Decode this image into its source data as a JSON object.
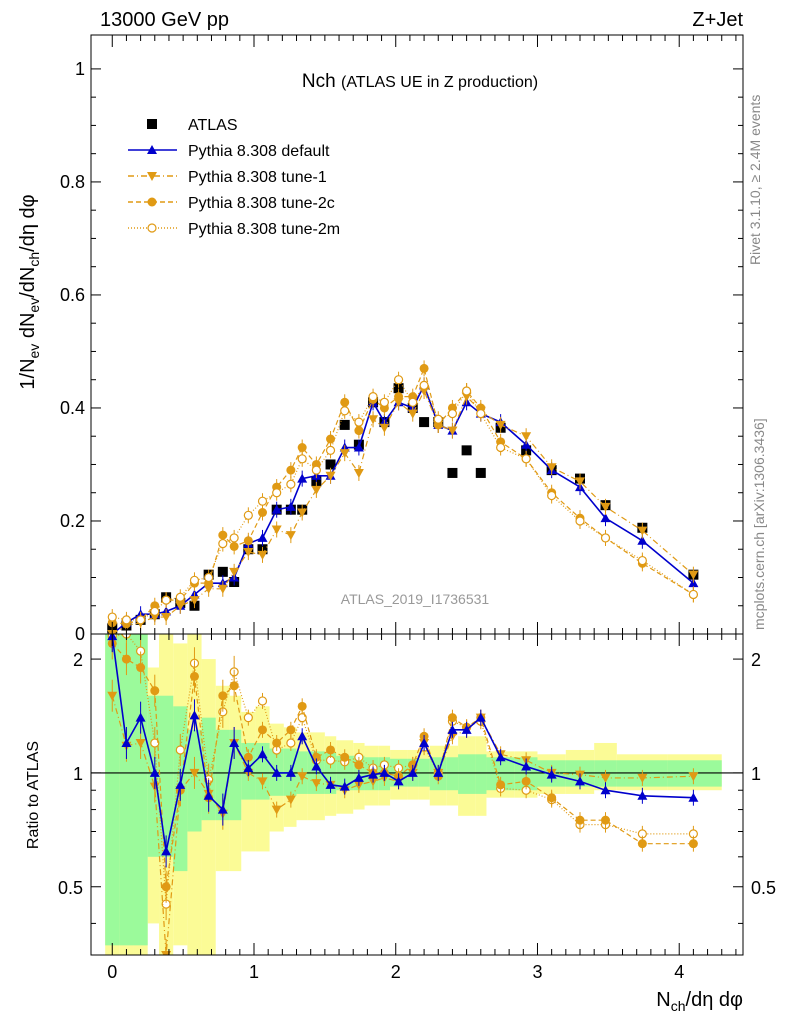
{
  "header": {
    "left": "13000 GeV pp",
    "right": "Z+Jet"
  },
  "side": {
    "rivet": "Rivet 3.1.10, ≥ 2.4M events",
    "mcplots": "mcplots.cern.ch [arXiv:1306.3436]"
  },
  "chart_data": [
    {
      "type": "scatter",
      "title": "Nch",
      "subtitle": "(ATLAS UE in Z production)",
      "watermark": "ATLAS_2019_I1736531",
      "ylabel": "1/N_ev dN_ev/dN_ch/dη dφ",
      "ylim": [
        0,
        1.06
      ],
      "xlim": [
        -0.15,
        4.45
      ],
      "yticks": [
        "0",
        "0.2",
        "0.4",
        "0.6",
        "0.8",
        "1"
      ],
      "legend_placement": "top-left",
      "colors": {
        "atlas": "#000000",
        "default": "#0000cc",
        "tune": "#e09a14",
        "band_inner": "#9bfa9b",
        "band_outer": "#fbfb96"
      },
      "x": [
        0.0,
        0.1,
        0.2,
        0.3,
        0.38,
        0.48,
        0.58,
        0.68,
        0.78,
        0.86,
        0.96,
        1.06,
        1.16,
        1.26,
        1.34,
        1.44,
        1.54,
        1.64,
        1.74,
        1.84,
        1.92,
        2.02,
        2.12,
        2.2,
        2.3,
        2.4,
        2.5,
        2.6,
        2.74,
        2.92,
        3.1,
        3.3,
        3.48,
        3.74,
        4.1
      ],
      "series": [
        {
          "name": "ATLAS",
          "marker": "square",
          "values": [
            0.01,
            0.015,
            0.025,
            0.035,
            0.065,
            0.055,
            0.05,
            0.105,
            0.11,
            0.092,
            0.15,
            0.15,
            0.22,
            0.22,
            0.22,
            0.27,
            0.3,
            0.37,
            0.335,
            0.41,
            0.375,
            0.435,
            0.4,
            0.375,
            0.375,
            0.285,
            0.325,
            0.285,
            0.365,
            0.325,
            0.29,
            0.275,
            0.228,
            0.188,
            0.105
          ]
        },
        {
          "name": "Pythia 8.308 default",
          "marker": "triangle-up",
          "values": [
            0.0,
            0.02,
            0.035,
            0.035,
            0.04,
            0.05,
            0.07,
            0.09,
            0.09,
            0.1,
            0.16,
            0.17,
            0.22,
            0.225,
            0.275,
            0.28,
            0.28,
            0.33,
            0.33,
            0.41,
            0.375,
            0.41,
            0.4,
            0.44,
            0.37,
            0.36,
            0.41,
            0.39,
            0.375,
            0.335,
            0.29,
            0.26,
            0.205,
            0.165,
            0.09
          ]
        },
        {
          "name": "Pythia 8.308 tune-1",
          "marker": "triangle-down",
          "values": [
            0.0,
            0.015,
            0.02,
            0.03,
            0.03,
            0.05,
            0.06,
            0.08,
            0.08,
            0.11,
            0.145,
            0.14,
            0.185,
            0.175,
            0.215,
            0.255,
            0.28,
            0.32,
            0.285,
            0.38,
            0.365,
            0.41,
            0.39,
            0.43,
            0.37,
            0.36,
            0.42,
            0.395,
            0.37,
            0.35,
            0.295,
            0.27,
            0.225,
            0.183,
            0.105
          ]
        },
        {
          "name": "Pythia 8.308 tune-2c",
          "marker": "circle",
          "values": [
            0.02,
            0.018,
            0.025,
            0.05,
            0.06,
            0.06,
            0.09,
            0.09,
            0.175,
            0.155,
            0.165,
            0.215,
            0.26,
            0.29,
            0.33,
            0.3,
            0.345,
            0.41,
            0.36,
            0.415,
            0.4,
            0.42,
            0.42,
            0.47,
            0.37,
            0.4,
            0.43,
            0.4,
            0.34,
            0.31,
            0.25,
            0.205,
            0.17,
            0.125,
            0.07
          ]
        },
        {
          "name": "Pythia 8.308 tune-2m",
          "marker": "circle-open",
          "values": [
            0.03,
            0.025,
            0.025,
            0.04,
            0.06,
            0.065,
            0.095,
            0.1,
            0.16,
            0.17,
            0.21,
            0.235,
            0.25,
            0.265,
            0.31,
            0.29,
            0.325,
            0.395,
            0.375,
            0.42,
            0.41,
            0.45,
            0.41,
            0.44,
            0.38,
            0.39,
            0.43,
            0.39,
            0.33,
            0.31,
            0.245,
            0.2,
            0.17,
            0.13,
            0.07
          ]
        }
      ]
    },
    {
      "type": "line",
      "ylabel": "Ratio to ATLAS",
      "ylim": [
        0.33,
        2.33
      ],
      "yscale": "log",
      "xlim": [
        -0.15,
        4.45
      ],
      "xlabel": "N_ch/dη dφ",
      "xticks": [
        "0",
        "1",
        "2",
        "3",
        "4"
      ],
      "yticks": [
        "0.5",
        "1",
        "2"
      ],
      "reference_line": 1,
      "band_edges": [
        -0.05,
        0.05,
        0.15,
        0.25,
        0.33,
        0.43,
        0.53,
        0.63,
        0.73,
        0.83,
        0.91,
        1.01,
        1.11,
        1.21,
        1.3,
        1.38,
        1.5,
        1.58,
        1.7,
        1.78,
        1.88,
        1.96,
        2.08,
        2.16,
        2.24,
        2.36,
        2.44,
        2.56,
        2.64,
        2.84,
        3.0,
        3.2,
        3.4,
        3.56,
        3.92,
        4.3
      ],
      "band_inner": [
        0.35,
        0.35,
        0.35,
        0.6,
        0.6,
        0.55,
        0.7,
        0.75,
        0.75,
        0.75,
        0.85,
        0.85,
        0.87,
        0.87,
        0.88,
        0.88,
        0.88,
        0.9,
        0.9,
        0.9,
        0.9,
        0.92,
        0.92,
        0.92,
        0.9,
        0.9,
        0.88,
        0.88,
        0.9,
        0.9,
        0.92,
        0.92,
        0.92,
        0.92,
        0.92
      ],
      "band_inner_high": [
        2.33,
        2.33,
        2.33,
        1.6,
        1.6,
        1.5,
        1.3,
        1.4,
        1.3,
        1.3,
        1.2,
        1.2,
        1.16,
        1.16,
        1.14,
        1.14,
        1.13,
        1.11,
        1.11,
        1.1,
        1.1,
        1.09,
        1.09,
        1.09,
        1.1,
        1.1,
        1.12,
        1.12,
        1.1,
        1.1,
        1.08,
        1.08,
        1.08,
        1.08,
        1.08
      ],
      "band_outer": [
        0.33,
        0.33,
        0.33,
        0.4,
        0.33,
        0.35,
        0.33,
        0.33,
        0.55,
        0.55,
        0.62,
        0.62,
        0.7,
        0.72,
        0.75,
        0.75,
        0.77,
        0.78,
        0.8,
        0.82,
        0.82,
        0.85,
        0.85,
        0.85,
        0.82,
        0.82,
        0.77,
        0.77,
        0.86,
        0.86,
        0.88,
        0.88,
        0.9,
        0.9,
        0.9
      ],
      "band_outer_high": [
        2.33,
        2.33,
        2.33,
        1.9,
        2.33,
        2.2,
        2.33,
        2.0,
        1.7,
        1.6,
        1.45,
        1.5,
        1.35,
        1.32,
        1.28,
        1.28,
        1.25,
        1.22,
        1.2,
        1.18,
        1.18,
        1.15,
        1.15,
        1.15,
        1.18,
        1.18,
        1.25,
        1.25,
        1.14,
        1.14,
        1.12,
        1.15,
        1.2,
        1.12,
        1.12
      ],
      "x": [
        0.0,
        0.1,
        0.2,
        0.3,
        0.38,
        0.48,
        0.58,
        0.68,
        0.78,
        0.86,
        0.96,
        1.06,
        1.16,
        1.26,
        1.34,
        1.44,
        1.54,
        1.64,
        1.74,
        1.84,
        1.92,
        2.02,
        2.12,
        2.2,
        2.3,
        2.4,
        2.5,
        2.6,
        2.74,
        2.92,
        3.1,
        3.3,
        3.48,
        3.74,
        4.1
      ],
      "series": [
        {
          "name": "Pythia 8.308 default",
          "values": [
            2.3,
            1.2,
            1.4,
            1.0,
            0.62,
            0.93,
            1.42,
            0.87,
            0.8,
            1.2,
            1.03,
            1.12,
            1.0,
            1.0,
            1.25,
            1.04,
            0.93,
            0.92,
            0.97,
            0.99,
            1.0,
            0.95,
            1.0,
            1.2,
            1.0,
            1.3,
            1.3,
            1.4,
            1.1,
            1.04,
            0.99,
            0.95,
            0.9,
            0.87,
            0.86
          ]
        },
        {
          "name": "Pythia 8.308 tune-1",
          "values": [
            1.6,
            1.18,
            1.2,
            0.92,
            0.33,
            0.9,
            1.0,
            0.88,
            0.78,
            1.2,
            1.0,
            0.95,
            0.8,
            0.85,
            0.98,
            0.94,
            0.93,
            0.9,
            0.93,
            0.95,
            0.97,
            0.95,
            1.0,
            1.2,
            1.0,
            1.25,
            1.3,
            1.4,
            1.12,
            1.08,
            1.0,
            0.99,
            0.97,
            0.97,
            0.98
          ]
        },
        {
          "name": "Pythia 8.308 tune-2c",
          "values": [
            2.2,
            2.0,
            1.9,
            1.65,
            0.5,
            0.9,
            1.8,
            0.86,
            1.6,
            1.7,
            1.1,
            1.3,
            1.2,
            1.3,
            1.5,
            1.1,
            1.15,
            1.1,
            1.05,
            1.0,
            1.0,
            0.98,
            1.05,
            1.25,
            0.98,
            1.4,
            1.32,
            1.4,
            0.93,
            0.95,
            0.86,
            0.75,
            0.75,
            0.65,
            0.65
          ]
        },
        {
          "name": "Pythia 8.308 tune-2m",
          "values": [
            2.3,
            2.33,
            2.1,
            1.2,
            0.45,
            1.15,
            1.95,
            0.96,
            1.45,
            1.85,
            1.4,
            1.55,
            1.15,
            1.2,
            1.4,
            1.08,
            1.08,
            1.07,
            1.1,
            1.03,
            1.05,
            1.03,
            1.05,
            1.17,
            1.0,
            1.37,
            1.32,
            1.37,
            0.91,
            0.9,
            0.85,
            0.73,
            0.73,
            0.69,
            0.69
          ]
        }
      ]
    }
  ]
}
